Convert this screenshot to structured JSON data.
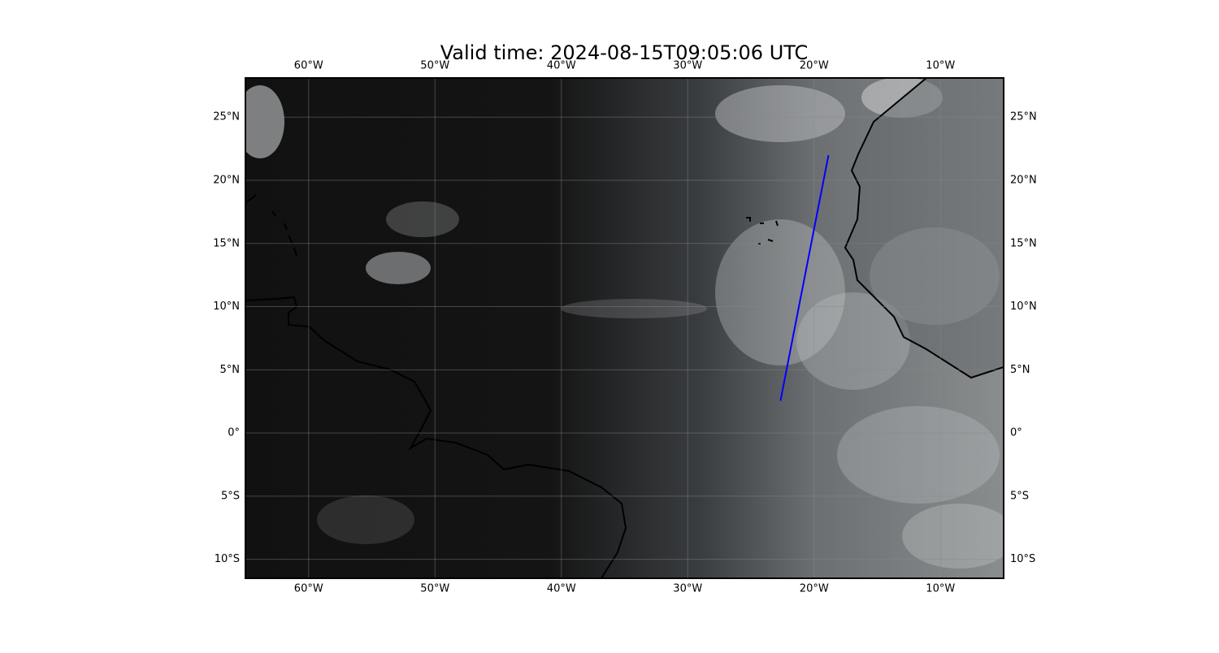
{
  "chart_data": {
    "type": "map",
    "title": "Valid time: 2024-08-15T09:05:06 UTC",
    "xlim": [
      -65,
      -5
    ],
    "ylim": [
      -11.5,
      28.1
    ],
    "xticks": [
      {
        "value": -60,
        "label": "60°W"
      },
      {
        "value": -50,
        "label": "50°W"
      },
      {
        "value": -40,
        "label": "40°W"
      },
      {
        "value": -30,
        "label": "30°W"
      },
      {
        "value": -20,
        "label": "20°W"
      },
      {
        "value": -10,
        "label": "10°W"
      }
    ],
    "yticks": [
      {
        "value": -10,
        "label": "10°S"
      },
      {
        "value": -5,
        "label": "5°S"
      },
      {
        "value": 0,
        "label": "0°"
      },
      {
        "value": 5,
        "label": "5°N"
      },
      {
        "value": 10,
        "label": "10°N"
      },
      {
        "value": 15,
        "label": "15°N"
      },
      {
        "value": 20,
        "label": "20°N"
      },
      {
        "value": 25,
        "label": "25°N"
      }
    ],
    "grid": true,
    "series": [
      {
        "color": "#0000ff",
        "x": [
          -22.66,
          -18.86
        ],
        "values": [
          2.55,
          21.99
        ]
      }
    ]
  }
}
